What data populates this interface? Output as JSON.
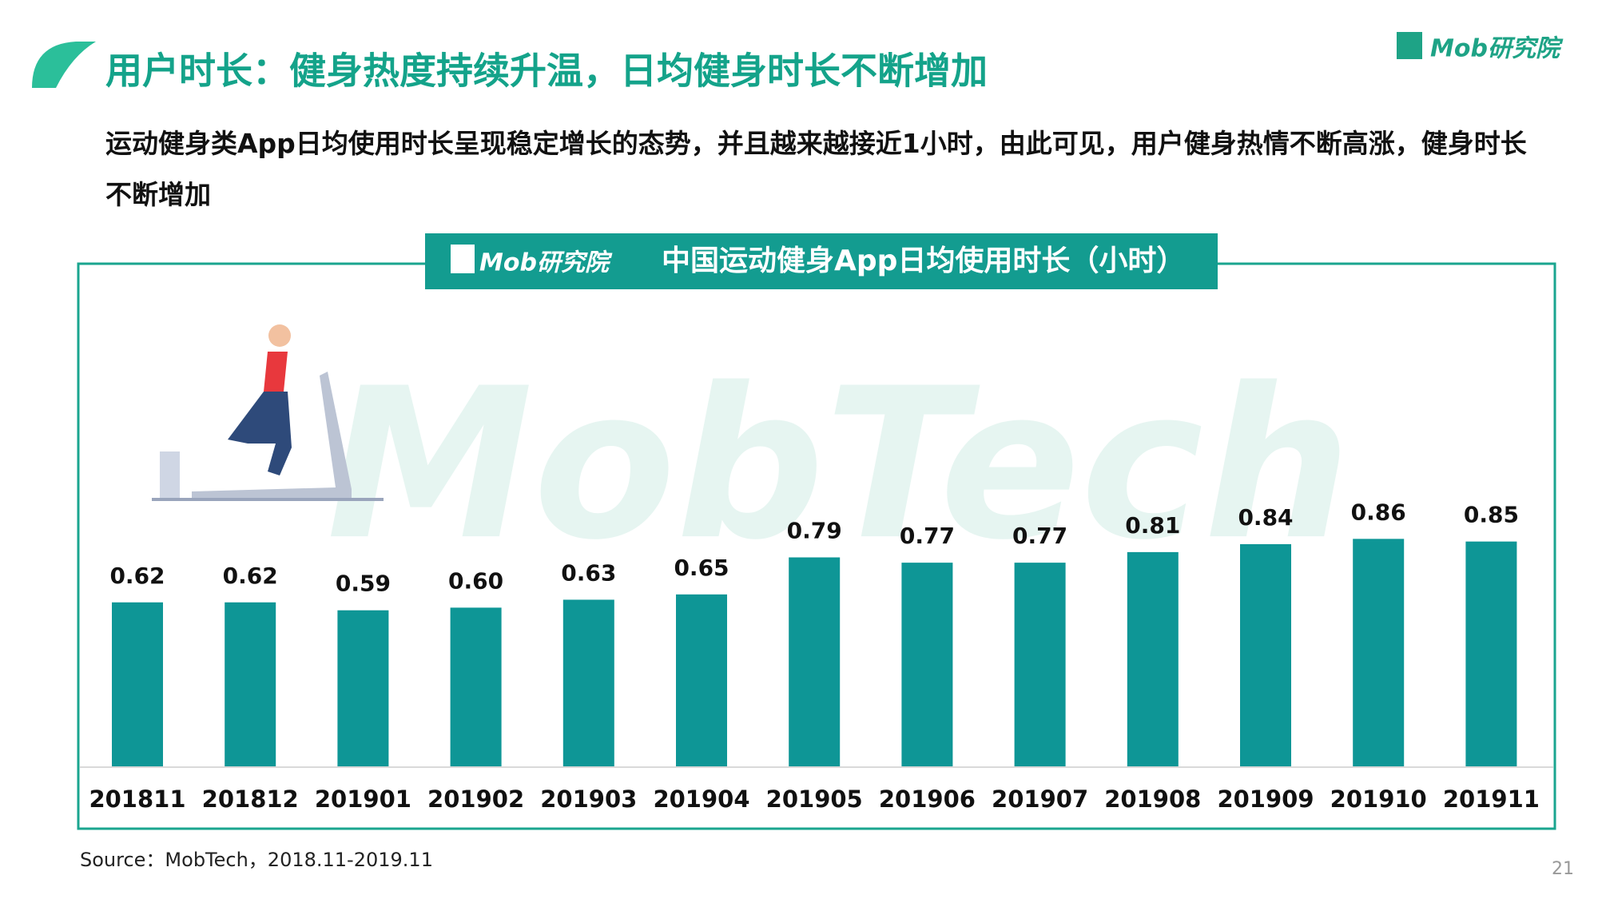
{
  "header": {
    "title": "用户时长：健身热度持续升温，日均健身时长不断增加",
    "logo": "Mob研究院",
    "subtitle": "运动健身类App日均使用时长呈现稳定增长的态势，并且越来越接近1小时，由此可见，用户健身热情不断高涨，健身时长不断增加"
  },
  "watermark": "MobTech",
  "chart_data": {
    "type": "bar",
    "banner_logo": "Mob研究院",
    "title": "中国运动健身App日均使用时长（小时）",
    "categories": [
      "201811",
      "201812",
      "201901",
      "201902",
      "201903",
      "201904",
      "201905",
      "201906",
      "201907",
      "201908",
      "201909",
      "201910",
      "201911"
    ],
    "values": [
      0.62,
      0.62,
      0.59,
      0.6,
      0.63,
      0.65,
      0.79,
      0.77,
      0.77,
      0.81,
      0.84,
      0.86,
      0.85
    ],
    "value_labels": [
      "0.62",
      "0.62",
      "0.59",
      "0.60",
      "0.63",
      "0.65",
      "0.79",
      "0.77",
      "0.77",
      "0.81",
      "0.84",
      "0.86",
      "0.85"
    ],
    "color": "#0e9696"
  },
  "footer": {
    "source": "Source：MobTech，2018.11-2019.11",
    "page": "21"
  }
}
